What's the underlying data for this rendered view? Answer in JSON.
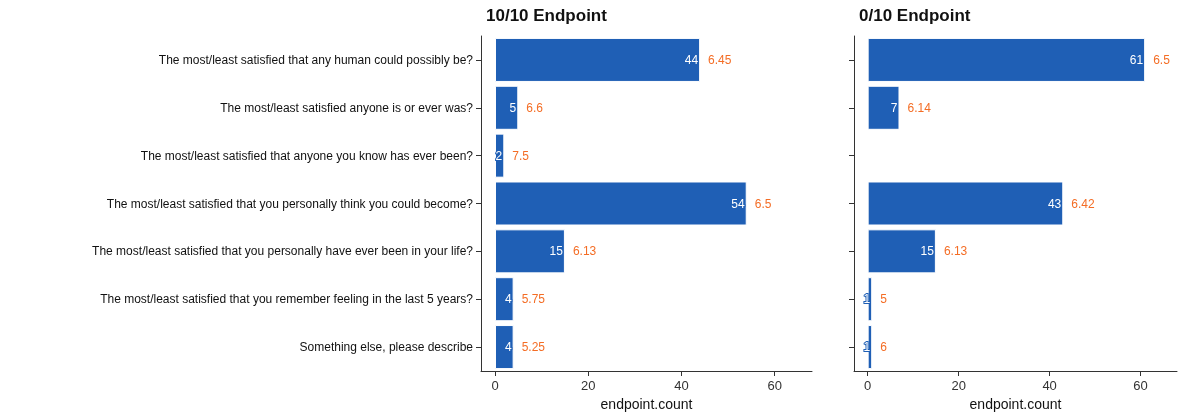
{
  "chart_data": [
    {
      "type": "bar",
      "orientation": "horizontal",
      "title": "10/10 Endpoint",
      "xlabel": "endpoint.count",
      "categories": [
        "The most/least satisfied that any human could possibly be?",
        "The most/least satisfied anyone is or ever was?",
        "The most/least satisfied that anyone you know has ever been?",
        "The most/least satisfied that you personally think you could become?",
        "The most/least satisfied that you personally have ever been in your life?",
        "The most/least satisfied that you remember feeling in the last 5 years?",
        "Something else, please describe"
      ],
      "values": [
        44,
        5,
        2,
        54,
        15,
        4,
        4
      ],
      "color": "#1f5fb5",
      "data_labels": true,
      "xlim": [
        -3,
        68
      ],
      "xticks": [
        0,
        20,
        40,
        60
      ],
      "grid": false,
      "annotations": [
        {
          "text": "6.45",
          "x": 44,
          "y": "The most/least satisfied that any human could possibly be?"
        },
        {
          "text": "6.6",
          "x": 5,
          "y": "The most/least satisfied anyone is or ever was?"
        },
        {
          "text": "7.5",
          "x": 2,
          "y": "The most/least satisfied that anyone you know has ever been?"
        },
        {
          "text": "6.5",
          "x": 54,
          "y": "The most/least satisfied that you personally think you could become?"
        },
        {
          "text": "6.13",
          "x": 15,
          "y": "The most/least satisfied that you personally have ever been in your life?"
        },
        {
          "text": "5.75",
          "x": 4,
          "y": "The most/least satisfied that you remember feeling in the last 5 years?"
        },
        {
          "text": "5.25",
          "x": 4,
          "y": "Something else, please describe"
        }
      ]
    },
    {
      "type": "bar",
      "orientation": "horizontal",
      "title": "0/10 Endpoint",
      "xlabel": "endpoint.count",
      "categories": [
        "The most/least satisfied that any human could possibly be?",
        "The most/least satisfied anyone is or ever was?",
        "The most/least satisfied that anyone you know has ever been?",
        "The most/least satisfied that you personally think you could become?",
        "The most/least satisfied that you personally have ever been in your life?",
        "The most/least satisfied that you remember feeling in the last 5 years?",
        "Something else, please describe"
      ],
      "values": [
        61,
        7,
        null,
        43,
        15,
        1,
        1
      ],
      "color": "#1f5fb5",
      "data_labels": true,
      "tick_labels": "x",
      "xlim": [
        -3,
        68
      ],
      "xticks": [
        0,
        20,
        40,
        60
      ],
      "grid": false,
      "annotations": [
        {
          "text": "6.5",
          "x": 61,
          "y": "The most/least satisfied that any human could possibly be?"
        },
        {
          "text": "6.14",
          "x": 7,
          "y": "The most/least satisfied anyone is or ever was?"
        },
        {
          "text": "6.42",
          "x": 43,
          "y": "The most/least satisfied that you personally think you could become?"
        },
        {
          "text": "6.13",
          "x": 15,
          "y": "The most/least satisfied that you personally have ever been in your life?"
        },
        {
          "text": "5",
          "x": 1,
          "y": "The most/least satisfied that you remember feeling in the last 5 years?"
        },
        {
          "text": "6",
          "x": 1,
          "y": "Something else, please describe"
        }
      ]
    }
  ]
}
